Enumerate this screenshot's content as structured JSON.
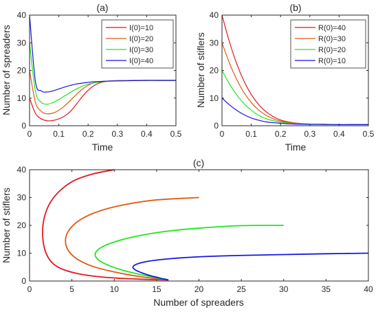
{
  "chart_data": [
    {
      "type": "line",
      "title": "(a)",
      "xlabel": "Time",
      "ylabel": "Number of spreaders",
      "xlim": [
        0,
        0.5
      ],
      "ylim": [
        0,
        40
      ],
      "xticks": [
        "0",
        "0.1",
        "0.2",
        "0.3",
        "0.4",
        "0.5"
      ],
      "yticks": [
        "0",
        "10",
        "20",
        "30",
        "40"
      ],
      "legend_position": "top-right",
      "grid": false,
      "series": [
        {
          "name": "I(0)=10",
          "color": "#e6141e",
          "x": [
            0,
            0.02,
            0.04,
            0.06,
            0.08,
            0.1,
            0.12,
            0.14,
            0.16,
            0.18,
            0.2,
            0.22,
            0.24,
            0.26,
            0.28,
            0.3,
            0.35,
            0.4,
            0.45,
            0.5
          ],
          "y": [
            10,
            4.5,
            2.5,
            1.8,
            1.9,
            2.5,
            3.5,
            5.2,
            7.8,
            10.5,
            12.8,
            14.5,
            15.5,
            16,
            16.2,
            16.3,
            16.4,
            16.4,
            16.4,
            16.4
          ]
        },
        {
          "name": "I(0)=20",
          "color": "#e05a14",
          "x": [
            0,
            0.02,
            0.04,
            0.06,
            0.08,
            0.1,
            0.12,
            0.14,
            0.16,
            0.18,
            0.2,
            0.22,
            0.24,
            0.26,
            0.28,
            0.3,
            0.35,
            0.4,
            0.45,
            0.5
          ],
          "y": [
            20,
            8.5,
            5.2,
            4.3,
            4.6,
            5.6,
            7.2,
            9.2,
            11.3,
            13.2,
            14.6,
            15.5,
            15.9,
            16.1,
            16.2,
            16.3,
            16.4,
            16.4,
            16.4,
            16.4
          ]
        },
        {
          "name": "I(0)=30",
          "color": "#1ee61e",
          "x": [
            0,
            0.02,
            0.04,
            0.06,
            0.08,
            0.1,
            0.12,
            0.14,
            0.16,
            0.18,
            0.2,
            0.22,
            0.24,
            0.26,
            0.28,
            0.3,
            0.35,
            0.4,
            0.45,
            0.5
          ],
          "y": [
            30,
            12.5,
            8.5,
            7.8,
            8.4,
            9.5,
            10.8,
            12.1,
            13.3,
            14.3,
            15,
            15.5,
            15.8,
            16,
            16.1,
            16.2,
            16.3,
            16.4,
            16.4,
            16.4
          ]
        },
        {
          "name": "I(0)=40",
          "color": "#1414e6",
          "x": [
            0,
            0.02,
            0.04,
            0.06,
            0.08,
            0.1,
            0.12,
            0.14,
            0.16,
            0.18,
            0.2,
            0.22,
            0.24,
            0.26,
            0.28,
            0.3,
            0.35,
            0.4,
            0.45,
            0.5
          ],
          "y": [
            40,
            16,
            12.6,
            12.2,
            12.6,
            13.3,
            14,
            14.6,
            15.1,
            15.4,
            15.7,
            15.9,
            16,
            16.1,
            16.2,
            16.2,
            16.3,
            16.4,
            16.4,
            16.4
          ]
        }
      ]
    },
    {
      "type": "line",
      "title": "(b)",
      "xlabel": "Time",
      "ylabel": "Number of stiflers",
      "xlim": [
        0,
        0.5
      ],
      "ylim": [
        0,
        40
      ],
      "xticks": [
        "0",
        "0.1",
        "0.2",
        "0.3",
        "0.4",
        "0.5"
      ],
      "yticks": [
        "0",
        "10",
        "20",
        "30",
        "40"
      ],
      "legend_position": "top-right",
      "grid": false,
      "series": [
        {
          "name": "R(0)=40",
          "color": "#e6141e",
          "x": [
            0,
            0.025,
            0.05,
            0.075,
            0.1,
            0.125,
            0.15,
            0.175,
            0.2,
            0.225,
            0.25,
            0.3,
            0.35,
            0.4,
            0.45,
            0.5
          ],
          "y": [
            40,
            30.5,
            22.5,
            16.2,
            11.3,
            7.7,
            5.1,
            3.3,
            2.1,
            1.4,
            1,
            0.6,
            0.5,
            0.4,
            0.4,
            0.4
          ]
        },
        {
          "name": "R(0)=30",
          "color": "#e05a14",
          "x": [
            0,
            0.025,
            0.05,
            0.075,
            0.1,
            0.125,
            0.15,
            0.175,
            0.2,
            0.225,
            0.25,
            0.3,
            0.35,
            0.4,
            0.45,
            0.5
          ],
          "y": [
            30,
            22.8,
            16.8,
            12,
            8.4,
            5.7,
            3.8,
            2.5,
            1.7,
            1.2,
            0.9,
            0.6,
            0.5,
            0.4,
            0.4,
            0.4
          ]
        },
        {
          "name": "R(0)=20",
          "color": "#1ee61e",
          "x": [
            0,
            0.025,
            0.05,
            0.075,
            0.1,
            0.125,
            0.15,
            0.175,
            0.2,
            0.225,
            0.25,
            0.3,
            0.35,
            0.4,
            0.45,
            0.5
          ],
          "y": [
            20,
            15.2,
            11.2,
            8,
            5.6,
            3.8,
            2.6,
            1.8,
            1.3,
            1,
            0.8,
            0.6,
            0.5,
            0.4,
            0.4,
            0.4
          ]
        },
        {
          "name": "R(0)=10",
          "color": "#1414e6",
          "x": [
            0,
            0.025,
            0.05,
            0.075,
            0.1,
            0.125,
            0.15,
            0.175,
            0.2,
            0.225,
            0.25,
            0.3,
            0.35,
            0.4,
            0.45,
            0.5
          ],
          "y": [
            10,
            7.6,
            5.6,
            4,
            2.8,
            2,
            1.4,
            1.1,
            0.9,
            0.7,
            0.6,
            0.5,
            0.5,
            0.4,
            0.4,
            0.4
          ]
        }
      ]
    },
    {
      "type": "line",
      "title": "(c)",
      "xlabel": "Number of spreaders",
      "ylabel": "Number of stiflers",
      "xlim": [
        0,
        40
      ],
      "ylim": [
        0,
        40
      ],
      "xticks": [
        "0",
        "5",
        "10",
        "15",
        "20",
        "25",
        "30",
        "35",
        "40"
      ],
      "yticks": [
        "0",
        "10",
        "20",
        "30",
        "40"
      ],
      "grid": false,
      "series": [
        {
          "color": "#e6141e",
          "x": [
            10,
            7.5,
            5.2,
            3.6,
            2.5,
            1.9,
            1.6,
            1.55,
            1.7,
            2.1,
            2.8,
            4,
            5.8,
            8,
            10.5,
            12.8,
            14.6,
            15.7,
            16.2,
            16.4
          ],
          "y": [
            40,
            38.5,
            36,
            32.5,
            28.5,
            24.5,
            20.5,
            16.5,
            12.5,
            9,
            6.2,
            4.1,
            2.6,
            1.6,
            1,
            0.7,
            0.5,
            0.45,
            0.4,
            0.4
          ]
        },
        {
          "color": "#e05a14",
          "x": [
            20,
            14.5,
            10.2,
            7.4,
            5.6,
            4.6,
            4.25,
            4.4,
            5,
            6,
            7.5,
            9.5,
            11.6,
            13.5,
            14.9,
            15.8,
            16.2,
            16.4
          ],
          "y": [
            30,
            29,
            26.8,
            24.2,
            21.2,
            18,
            15,
            12,
            9.4,
            7.2,
            5.2,
            3.6,
            2.3,
            1.4,
            0.9,
            0.6,
            0.45,
            0.4
          ]
        },
        {
          "color": "#1ee61e",
          "x": [
            30,
            25,
            20,
            16,
            12.8,
            10.5,
            8.8,
            7.9,
            7.8,
            8.4,
            9.6,
            11.2,
            13,
            14.6,
            15.6,
            16.2,
            16.4
          ],
          "y": [
            20,
            19.9,
            19,
            17.8,
            16.2,
            14.5,
            12.6,
            10.7,
            8.8,
            7,
            5.3,
            3.7,
            2.4,
            1.4,
            0.8,
            0.5,
            0.4
          ]
        },
        {
          "color": "#1414e6",
          "x": [
            40,
            35,
            30,
            25,
            20,
            16.5,
            14,
            12.6,
            12.2,
            12.6,
            13.4,
            14.3,
            15.1,
            15.7,
            16.1,
            16.3,
            16.4
          ],
          "y": [
            10,
            9.8,
            9.5,
            9.2,
            8.7,
            8,
            7.1,
            6,
            4.9,
            3.8,
            2.8,
            1.9,
            1.3,
            0.8,
            0.6,
            0.45,
            0.4
          ]
        }
      ]
    }
  ]
}
